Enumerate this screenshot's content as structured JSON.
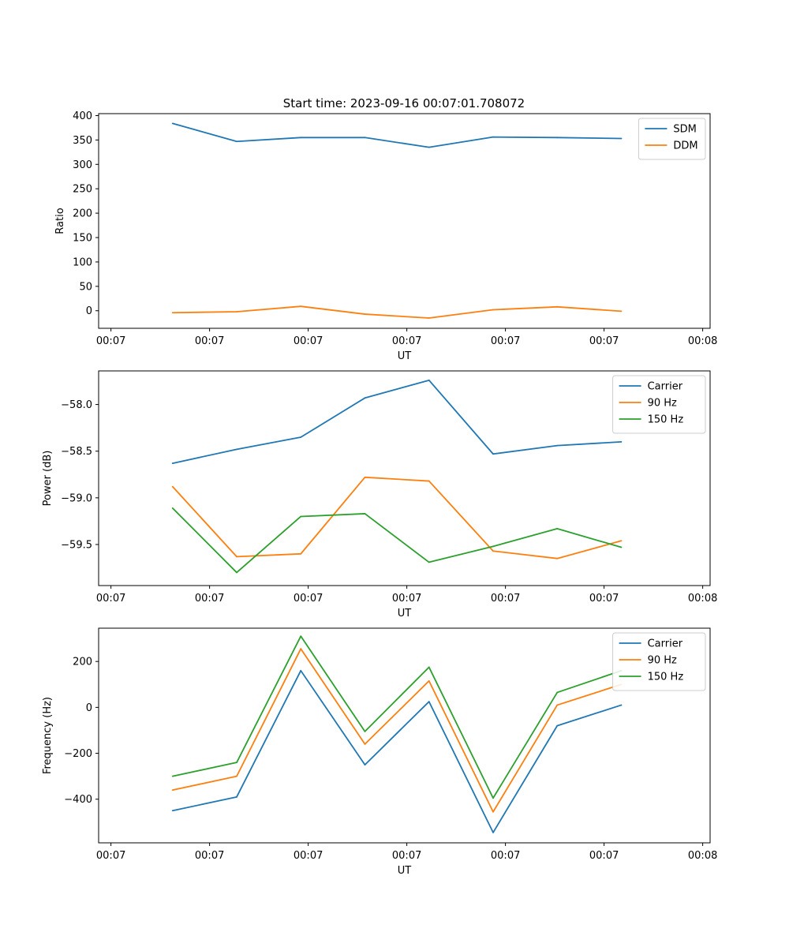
{
  "figure": {
    "suptitle": "Start time: 2023-09-16 00:07:01.708072"
  },
  "chart_data": [
    {
      "type": "line",
      "title": "Start time: 2023-09-16 00:07:01.708072",
      "xlabel": "UT",
      "ylabel": "Ratio",
      "xlim": [
        0,
        12.4
      ],
      "ylim": [
        -36,
        404
      ],
      "xticks": [
        0.25,
        2.25,
        4.25,
        6.25,
        8.25,
        10.25,
        12.25
      ],
      "xticklabels": [
        "00:07",
        "00:07",
        "00:07",
        "00:07",
        "00:07",
        "00:07",
        "00:08"
      ],
      "yticks": [
        0,
        50,
        100,
        150,
        200,
        250,
        300,
        350,
        400
      ],
      "yticklabels": [
        "0",
        "50",
        "100",
        "150",
        "200",
        "250",
        "300",
        "350",
        "400"
      ],
      "legend_position": "top-right",
      "x": [
        1.5,
        2.8,
        4.1,
        5.4,
        6.7,
        8.0,
        9.3,
        10.6
      ],
      "series": [
        {
          "name": "SDM",
          "color": "#1f77b4",
          "values": [
            384,
            347,
            355,
            355,
            335,
            356,
            355,
            353
          ]
        },
        {
          "name": "DDM",
          "color": "#ff7f0e",
          "values": [
            -4,
            -2,
            9,
            -7,
            -15,
            2,
            8,
            -1
          ]
        }
      ]
    },
    {
      "type": "line",
      "title": "",
      "xlabel": "UT",
      "ylabel": "Power (dB)",
      "xlim": [
        0,
        12.4
      ],
      "ylim": [
        -59.94,
        -57.64
      ],
      "xticks": [
        0.25,
        2.25,
        4.25,
        6.25,
        8.25,
        10.25,
        12.25
      ],
      "xticklabels": [
        "00:07",
        "00:07",
        "00:07",
        "00:07",
        "00:07",
        "00:07",
        "00:08"
      ],
      "yticks": [
        -59.5,
        -59.0,
        -58.5,
        -58.0
      ],
      "yticklabels": [
        "−59.5",
        "−59.0",
        "−58.5",
        "−58.0"
      ],
      "legend_position": "top-right",
      "x": [
        1.5,
        2.8,
        4.1,
        5.4,
        6.7,
        8.0,
        9.3,
        10.6
      ],
      "series": [
        {
          "name": "Carrier",
          "color": "#1f77b4",
          "values": [
            -58.63,
            -58.48,
            -58.35,
            -57.93,
            -57.74,
            -58.53,
            -58.44,
            -58.4
          ]
        },
        {
          "name": "90 Hz",
          "color": "#ff7f0e",
          "values": [
            -58.88,
            -59.63,
            -59.6,
            -58.78,
            -58.82,
            -59.57,
            -59.65,
            -59.46
          ]
        },
        {
          "name": "150 Hz",
          "color": "#2ca02c",
          "values": [
            -59.11,
            -59.8,
            -59.2,
            -59.17,
            -59.69,
            -59.52,
            -59.33,
            -59.53
          ]
        }
      ]
    },
    {
      "type": "line",
      "title": "",
      "xlabel": "UT",
      "ylabel": "Frequency (Hz)",
      "xlim": [
        0,
        12.4
      ],
      "ylim": [
        -590,
        345
      ],
      "xticks": [
        0.25,
        2.25,
        4.25,
        6.25,
        8.25,
        10.25,
        12.25
      ],
      "xticklabels": [
        "00:07",
        "00:07",
        "00:07",
        "00:07",
        "00:07",
        "00:07",
        "00:08"
      ],
      "yticks": [
        -400,
        -200,
        0,
        200
      ],
      "yticklabels": [
        "−400",
        "−200",
        "0",
        "200"
      ],
      "legend_position": "top-right",
      "x": [
        1.5,
        2.8,
        4.1,
        5.4,
        6.7,
        8.0,
        9.3,
        10.6
      ],
      "series": [
        {
          "name": "Carrier",
          "color": "#1f77b4",
          "values": [
            -450,
            -390,
            160,
            -250,
            25,
            -545,
            -80,
            10
          ]
        },
        {
          "name": "90 Hz",
          "color": "#ff7f0e",
          "values": [
            -360,
            -300,
            255,
            -160,
            115,
            -455,
            10,
            100
          ]
        },
        {
          "name": "150 Hz",
          "color": "#2ca02c",
          "values": [
            -300,
            -240,
            310,
            -105,
            175,
            -395,
            65,
            160
          ]
        }
      ]
    }
  ]
}
